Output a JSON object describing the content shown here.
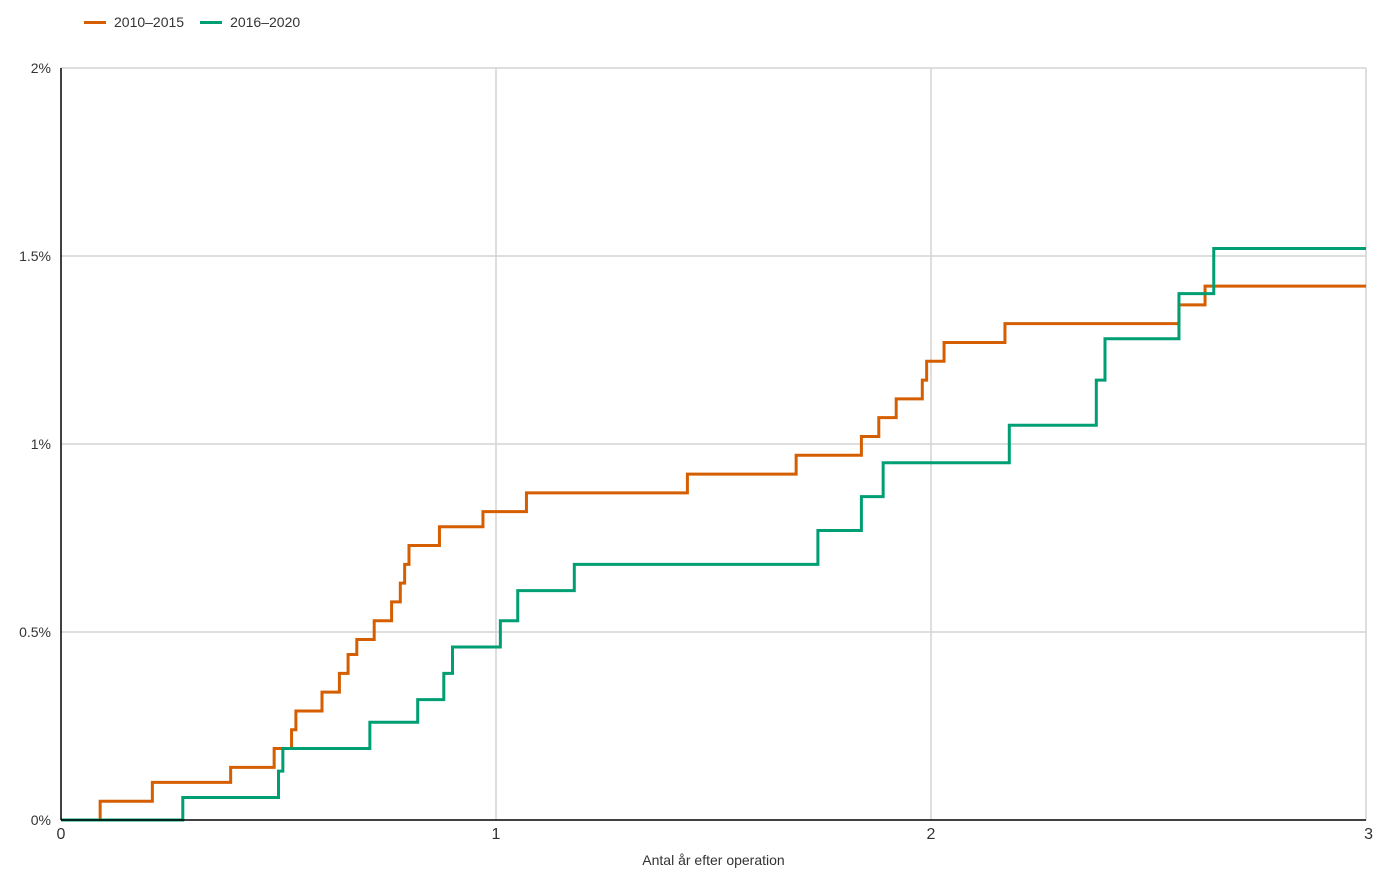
{
  "chart_data": {
    "type": "line",
    "step": true,
    "title": "",
    "xlabel": "Antal år efter operation",
    "ylabel": "",
    "xlim": [
      0,
      3
    ],
    "ylim": [
      0,
      2
    ],
    "x_ticks": [
      0,
      1,
      2,
      3
    ],
    "x_tick_labels": [
      "0",
      "1",
      "2",
      "3"
    ],
    "y_ticks": [
      0,
      0.5,
      1,
      1.5,
      2
    ],
    "y_tick_labels": [
      "0%",
      "0.5%",
      "1%",
      "1.5%",
      "2%"
    ],
    "y_unit": "%",
    "grid": true,
    "legend_position": "top-left",
    "series": [
      {
        "name": "2010–2015",
        "color": "#d55e00",
        "points": [
          [
            0,
            0
          ],
          [
            0.09,
            0.05
          ],
          [
            0.21,
            0.1
          ],
          [
            0.39,
            0.14
          ],
          [
            0.49,
            0.19
          ],
          [
            0.53,
            0.24
          ],
          [
            0.54,
            0.29
          ],
          [
            0.6,
            0.34
          ],
          [
            0.64,
            0.39
          ],
          [
            0.66,
            0.44
          ],
          [
            0.68,
            0.48
          ],
          [
            0.72,
            0.53
          ],
          [
            0.76,
            0.58
          ],
          [
            0.78,
            0.63
          ],
          [
            0.79,
            0.68
          ],
          [
            0.8,
            0.73
          ],
          [
            0.87,
            0.78
          ],
          [
            0.97,
            0.82
          ],
          [
            1.07,
            0.87
          ],
          [
            1.44,
            0.92
          ],
          [
            1.69,
            0.97
          ],
          [
            1.84,
            1.02
          ],
          [
            1.88,
            1.07
          ],
          [
            1.92,
            1.12
          ],
          [
            1.98,
            1.17
          ],
          [
            1.99,
            1.22
          ],
          [
            2.03,
            1.27
          ],
          [
            2.17,
            1.32
          ],
          [
            2.57,
            1.37
          ],
          [
            2.63,
            1.42
          ],
          [
            3.0,
            1.42
          ]
        ]
      },
      {
        "name": "2016–2020",
        "color": "#009e73",
        "points": [
          [
            0,
            0
          ],
          [
            0.28,
            0.06
          ],
          [
            0.5,
            0.13
          ],
          [
            0.51,
            0.19
          ],
          [
            0.71,
            0.26
          ],
          [
            0.82,
            0.32
          ],
          [
            0.88,
            0.39
          ],
          [
            0.9,
            0.46
          ],
          [
            1.01,
            0.53
          ],
          [
            1.05,
            0.61
          ],
          [
            1.18,
            0.68
          ],
          [
            1.74,
            0.77
          ],
          [
            1.84,
            0.86
          ],
          [
            1.89,
            0.95
          ],
          [
            2.18,
            1.05
          ],
          [
            2.38,
            1.17
          ],
          [
            2.4,
            1.28
          ],
          [
            2.57,
            1.4
          ],
          [
            2.65,
            1.52
          ],
          [
            3.0,
            1.52
          ]
        ]
      }
    ]
  }
}
